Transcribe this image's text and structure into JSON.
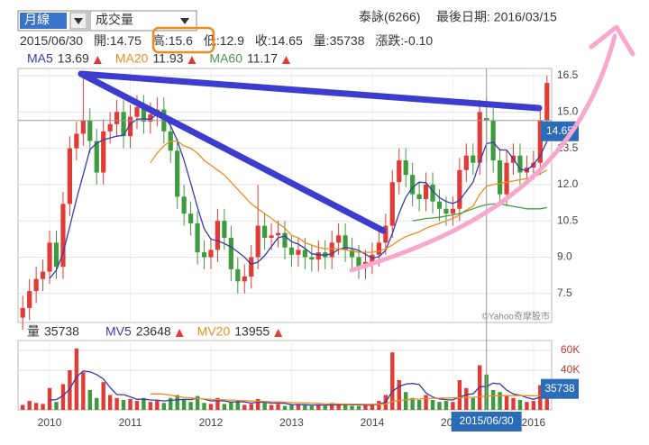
{
  "header": {
    "period": "月線",
    "indicator": "成交量",
    "stock": "泰詠(6266)",
    "last_date": "最後日期: 2016/03/15",
    "labels": {
      "open": "開:",
      "high": "高:",
      "low": "低:",
      "close": "收:",
      "volume": "量:",
      "change": "漲跌:"
    },
    "change": {
      "value": -0.1,
      "label": "-0.10"
    }
  },
  "chart_data": [
    {
      "type": "candlestick",
      "up_color": "#e23b35",
      "down_color": "#3d9a3d",
      "crosshair": {
        "index": 69,
        "date": "2015/06/30"
      },
      "credit": "©Yahoo奇摩股市",
      "xlim": [
        -0.7,
        78.7
      ],
      "xticks": [
        {
          "value": 4,
          "label": "2010"
        },
        {
          "value": 16,
          "label": "2011"
        },
        {
          "value": 28,
          "label": "2012"
        },
        {
          "value": 40,
          "label": "2013"
        },
        {
          "value": 52,
          "label": "2014"
        },
        {
          "value": 64,
          "label": "2015"
        },
        {
          "value": 76,
          "label": "2016"
        }
      ],
      "ylim": [
        6.3,
        16.8
      ],
      "yticks": [
        7.5,
        {
          "value": 9,
          "label": "9.0"
        },
        10.5,
        {
          "value": 12,
          "label": "12.0"
        },
        13.5,
        {
          "value": 15,
          "label": "15.0"
        },
        16.5
      ],
      "grid": true,
      "open": [
        6.5,
        6.9,
        7.6,
        8.1,
        8.4,
        9.6,
        8.6,
        11.2,
        13.5,
        14.1,
        14.65,
        13.8,
        12.5,
        14.2,
        14.5,
        15.0,
        14.0,
        14.8,
        15.2,
        14.6,
        14.9,
        15.1,
        14.2,
        13.4,
        11.5,
        10.8,
        10.4,
        9.2,
        9.0,
        9.3,
        10.5,
        9.8,
        8.5,
        8.0,
        8.2,
        9.0,
        10.3,
        9.8,
        9.9,
        10.0,
        9.4,
        9.1,
        9.3,
        9.0,
        8.9,
        9.2,
        9.0,
        9.6,
        9.9,
        9.3,
        9.0,
        8.6,
        8.8,
        9.1,
        9.6,
        10.3,
        12.1,
        13.0,
        12.4,
        11.6,
        11.4,
        12.0,
        11.3,
        11.0,
        10.8,
        11.0,
        12.6,
        13.2,
        12.9,
        14.75,
        14.65,
        13.0,
        11.6,
        12.9,
        13.2,
        12.5,
        12.7,
        12.9,
        14.65
      ],
      "high": [
        7.4,
        8.1,
        8.6,
        8.9,
        10.1,
        10.1,
        11.7,
        14.0,
        14.6,
        16.5,
        15.15,
        14.3,
        14.7,
        15.0,
        15.5,
        15.5,
        15.3,
        15.7,
        15.7,
        15.4,
        15.6,
        15.6,
        14.7,
        13.9,
        12.0,
        11.3,
        10.9,
        9.7,
        9.8,
        11.0,
        11.0,
        10.3,
        9.0,
        8.7,
        9.5,
        12.0,
        10.8,
        10.4,
        10.5,
        10.5,
        9.9,
        9.8,
        9.8,
        9.5,
        9.7,
        9.7,
        10.1,
        10.4,
        10.4,
        9.8,
        9.5,
        9.3,
        9.6,
        10.1,
        10.8,
        12.6,
        13.5,
        13.5,
        12.9,
        12.1,
        12.5,
        12.5,
        11.8,
        11.5,
        11.5,
        13.1,
        13.7,
        13.7,
        15.5,
        15.6,
        15.15,
        13.5,
        13.4,
        13.7,
        13.7,
        13.2,
        13.4,
        15.15,
        16.5
      ],
      "low": [
        6.0,
        6.4,
        7.1,
        7.6,
        7.9,
        8.1,
        8.1,
        10.7,
        13.0,
        13.6,
        13.3,
        12.0,
        12.0,
        13.7,
        14.0,
        13.5,
        13.5,
        14.3,
        14.1,
        14.1,
        14.4,
        13.7,
        12.9,
        11.0,
        10.3,
        9.9,
        8.7,
        8.5,
        8.5,
        8.8,
        9.3,
        8.0,
        7.5,
        7.5,
        7.7,
        8.5,
        9.3,
        9.3,
        9.4,
        8.9,
        8.6,
        8.6,
        8.5,
        8.4,
        8.4,
        8.5,
        8.5,
        9.1,
        8.8,
        8.5,
        8.1,
        8.1,
        8.3,
        8.6,
        9.1,
        9.8,
        11.6,
        11.9,
        11.1,
        10.9,
        10.9,
        10.8,
        10.5,
        10.3,
        10.3,
        10.5,
        12.1,
        12.4,
        12.4,
        12.9,
        12.5,
        11.1,
        11.1,
        12.4,
        12.0,
        12.0,
        12.2,
        12.4,
        14.15
      ],
      "close": [
        6.9,
        7.6,
        8.1,
        8.4,
        9.6,
        8.6,
        11.2,
        13.5,
        14.1,
        14.65,
        13.8,
        12.5,
        14.2,
        14.5,
        15.0,
        14.0,
        14.8,
        15.2,
        14.6,
        14.9,
        15.1,
        14.2,
        13.4,
        11.5,
        10.8,
        10.4,
        9.2,
        9.0,
        9.3,
        10.5,
        9.8,
        8.5,
        8.0,
        8.2,
        9.0,
        10.3,
        9.8,
        9.9,
        10.0,
        9.4,
        9.1,
        9.3,
        9.0,
        8.9,
        9.2,
        9.0,
        9.6,
        9.9,
        9.3,
        9.0,
        8.6,
        8.8,
        9.1,
        9.6,
        10.3,
        12.1,
        13.0,
        12.4,
        11.6,
        11.4,
        12.0,
        11.3,
        11.0,
        10.8,
        11.0,
        12.6,
        13.2,
        12.9,
        15.0,
        14.65,
        13.0,
        11.6,
        12.9,
        13.2,
        12.5,
        12.7,
        12.9,
        14.65,
        16.2
      ],
      "series": [
        {
          "name": "MA5",
          "color": "#3a3aa8",
          "values": [
            null,
            null,
            null,
            null,
            8.12,
            8.46,
            9.18,
            10.26,
            11.4,
            12.41,
            13.45,
            13.71,
            13.85,
            13.93,
            14.0,
            14.04,
            14.5,
            14.7,
            14.72,
            14.7,
            14.92,
            14.8,
            14.44,
            13.82,
            13.0,
            12.06,
            11.06,
            10.18,
            9.74,
            9.68,
            9.56,
            9.42,
            9.22,
            9.0,
            8.7,
            8.8,
            9.06,
            9.44,
            9.8,
            9.88,
            9.64,
            9.54,
            9.36,
            9.14,
            9.1,
            9.08,
            9.14,
            9.32,
            9.4,
            9.36,
            9.28,
            9.12,
            8.96,
            9.02,
            9.28,
            9.98,
            10.82,
            11.48,
            11.88,
            12.1,
            12.08,
            11.74,
            11.46,
            11.3,
            11.22,
            11.34,
            11.72,
            12.1,
            12.94,
            13.69,
            13.75,
            13.43,
            13.43,
            13.07,
            12.64,
            12.58,
            12.84,
            13.19,
            13.79
          ]
        },
        {
          "name": "MA20",
          "color": "#f08c1e",
          "values": [
            null,
            null,
            null,
            null,
            null,
            null,
            null,
            null,
            null,
            null,
            null,
            null,
            null,
            null,
            null,
            null,
            null,
            null,
            null,
            12.9,
            13.3,
            13.6,
            13.8,
            13.8,
            13.6,
            13.5,
            13.3,
            13.0,
            12.8,
            12.6,
            12.4,
            12.1,
            11.8,
            11.5,
            11.2,
            11.0,
            10.8,
            10.6,
            10.4,
            10.2,
            9.9,
            9.8,
            9.6,
            9.5,
            9.4,
            9.35,
            9.35,
            9.35,
            9.3,
            9.25,
            9.2,
            9.2,
            9.2,
            9.25,
            9.35,
            9.5,
            9.7,
            9.85,
            9.95,
            10.05,
            10.2,
            10.3,
            10.4,
            10.5,
            10.6,
            10.75,
            10.95,
            11.1,
            11.6,
            11.93,
            12.0,
            12.05,
            12.1,
            12.15,
            12.2,
            12.25,
            12.3,
            12.45,
            12.6
          ]
        },
        {
          "name": "MA60",
          "color": "#4a9a4a",
          "values": [
            null,
            null,
            null,
            null,
            null,
            null,
            null,
            null,
            null,
            null,
            null,
            null,
            null,
            null,
            null,
            null,
            null,
            null,
            null,
            null,
            null,
            null,
            null,
            null,
            null,
            null,
            null,
            null,
            null,
            null,
            null,
            null,
            null,
            null,
            null,
            null,
            null,
            null,
            null,
            null,
            null,
            null,
            null,
            null,
            null,
            null,
            null,
            null,
            null,
            null,
            null,
            null,
            null,
            null,
            null,
            null,
            null,
            null,
            10.5,
            10.55,
            10.6,
            10.62,
            10.65,
            10.7,
            10.75,
            10.8,
            10.9,
            11.0,
            11.1,
            11.17,
            11.2,
            11.2,
            11.15,
            11.1,
            11.05,
            11.0,
            11.0,
            11.0,
            11.05
          ]
        }
      ]
    },
    {
      "type": "volume",
      "ylim": [
        0,
        70000
      ],
      "yticks": [
        {
          "value": 40000,
          "label": "40K"
        },
        {
          "value": 60000,
          "label": "60K"
        }
      ],
      "grid": true,
      "name": "量",
      "values": [
        5000,
        9000,
        7000,
        6000,
        22000,
        8000,
        26000,
        40000,
        62000,
        38000,
        20000,
        12000,
        28000,
        15000,
        12000,
        10000,
        11000,
        9000,
        12000,
        8000,
        9000,
        7000,
        12000,
        15000,
        10000,
        8000,
        14000,
        7000,
        6000,
        12000,
        6000,
        8000,
        9000,
        5000,
        6000,
        11000,
        7000,
        5000,
        6000,
        4000,
        5000,
        6000,
        5000,
        4000,
        5000,
        4000,
        7000,
        6000,
        5000,
        4000,
        4000,
        5000,
        6000,
        9000,
        15000,
        58000,
        30000,
        18000,
        12000,
        10000,
        15000,
        10000,
        8000,
        9000,
        8000,
        30000,
        22000,
        12000,
        45000,
        35738,
        20000,
        18000,
        14000,
        12000,
        10000,
        8000,
        9000,
        25000,
        30000
      ],
      "series": [
        {
          "name": "MV5",
          "color": "#3a3aa8",
          "values": [
            null,
            null,
            null,
            null,
            9800,
            10400,
            14400,
            21200,
            33200,
            39200,
            38400,
            35600,
            31200,
            22600,
            15400,
            15400,
            13200,
            10600,
            10800,
            10000,
            9800,
            9000,
            9600,
            10200,
            10600,
            10400,
            11800,
            10800,
            9000,
            9400,
            9000,
            7800,
            8200,
            8000,
            6800,
            7800,
            7600,
            6800,
            7000,
            6600,
            5400,
            5200,
            5200,
            4800,
            5000,
            4800,
            5000,
            5200,
            5400,
            5200,
            5200,
            4800,
            4800,
            5600,
            7800,
            18600,
            23600,
            26000,
            26600,
            25600,
            17000,
            13000,
            11000,
            10400,
            10000,
            13000,
            15400,
            16200,
            23400,
            23648,
            27000,
            26300,
            20000,
            16000,
            14800,
            12400,
            10600,
            12800,
            16400
          ]
        },
        {
          "name": "MV20",
          "color": "#f08c1e",
          "values": [
            null,
            null,
            null,
            null,
            null,
            null,
            null,
            null,
            null,
            null,
            null,
            null,
            null,
            null,
            null,
            null,
            null,
            null,
            null,
            16000,
            16200,
            15800,
            14800,
            13500,
            12600,
            12000,
            11500,
            11000,
            10500,
            10300,
            10100,
            9800,
            9600,
            9300,
            9000,
            8800,
            8500,
            8200,
            8000,
            7800,
            7400,
            7200,
            7000,
            6800,
            6600,
            6300,
            6100,
            6000,
            5900,
            5800,
            5700,
            5600,
            5600,
            5700,
            6000,
            8300,
            9500,
            10200,
            10700,
            11000,
            11500,
            11700,
            11800,
            12000,
            12100,
            12400,
            12600,
            12700,
            13200,
            13955,
            14100,
            14300,
            14400,
            14500,
            14500,
            14300,
            14200,
            14100,
            14000
          ]
        }
      ]
    }
  ]
}
